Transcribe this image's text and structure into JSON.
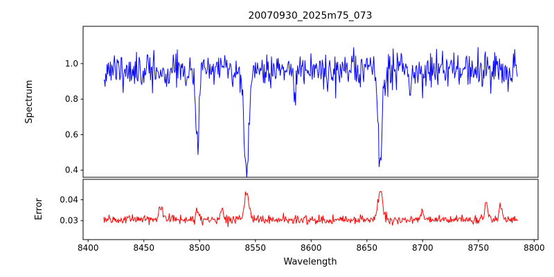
{
  "chart_data": {
    "type": "line",
    "title": "20070930_2025m75_073",
    "xlabel": "Wavelength",
    "x_tick_values": [
      8400,
      8450,
      8500,
      8550,
      8600,
      8650,
      8700,
      8750,
      8800
    ],
    "x_tick_labels": [
      "8400",
      "8450",
      "8500",
      "8550",
      "8600",
      "8650",
      "8700",
      "8750",
      "8800"
    ],
    "xlim": [
      8395.5,
      8803.5
    ],
    "x_data_range": [
      8414,
      8785
    ],
    "n_points": 620,
    "seed": 11,
    "grid": false,
    "legend": "none",
    "panels": [
      {
        "name": "spectrum",
        "ylabel": "Spectrum",
        "y_tick_values": [
          0.4,
          0.6,
          0.8,
          1.0
        ],
        "y_tick_labels": [
          "0.4",
          "0.6",
          "0.8",
          "1.0"
        ],
        "ylim": [
          0.36,
          1.21
        ],
        "color": "#0000ff",
        "baseline": 0.965,
        "noise_sigma": 0.05,
        "features": [
          {
            "center": 8498,
            "amplitude": -0.42,
            "width": 1.6
          },
          {
            "center": 8542,
            "amplitude": -0.58,
            "width": 2.2
          },
          {
            "center": 8662,
            "amplitude": -0.52,
            "width": 2.0
          },
          {
            "center": 8470,
            "amplitude": -0.1,
            "width": 1.0
          },
          {
            "center": 8585,
            "amplitude": -0.14,
            "width": 1.0
          },
          {
            "center": 8688,
            "amplitude": -0.13,
            "width": 1.0
          }
        ]
      },
      {
        "name": "error",
        "ylabel": "Error",
        "y_tick_values": [
          0.03,
          0.04
        ],
        "y_tick_labels": [
          "0.03",
          "0.04"
        ],
        "ylim": [
          0.021,
          0.0497
        ],
        "color": "#ff0000",
        "baseline": 0.0305,
        "noise_sigma": 0.0011,
        "features": [
          {
            "center": 8465,
            "amplitude": 0.0065,
            "width": 1.4
          },
          {
            "center": 8498,
            "amplitude": 0.0045,
            "width": 1.4
          },
          {
            "center": 8520,
            "amplitude": 0.0055,
            "width": 1.4
          },
          {
            "center": 8542,
            "amplitude": 0.0135,
            "width": 2.0
          },
          {
            "center": 8662,
            "amplitude": 0.0145,
            "width": 2.0
          },
          {
            "center": 8700,
            "amplitude": 0.0035,
            "width": 1.4
          },
          {
            "center": 8757,
            "amplitude": 0.008,
            "width": 1.4
          },
          {
            "center": 8770,
            "amplitude": 0.0055,
            "width": 1.4
          }
        ]
      }
    ]
  }
}
